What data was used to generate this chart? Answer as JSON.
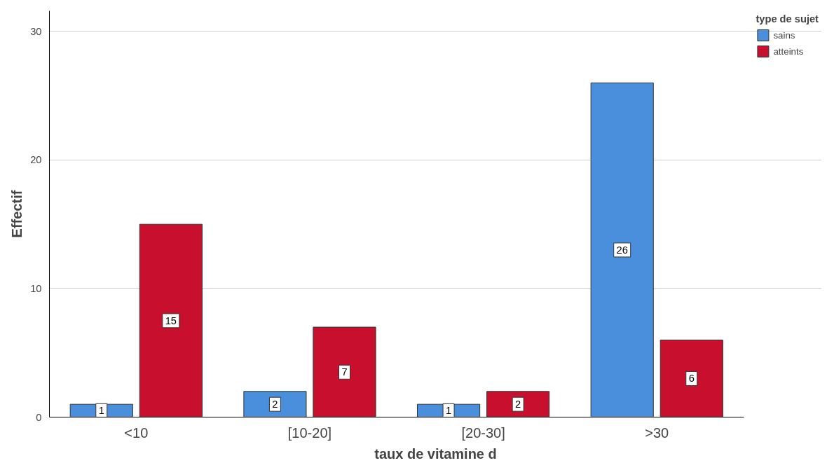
{
  "chart_data": {
    "type": "bar",
    "xlabel": "taux de vitamine d",
    "ylabel": "Effectif",
    "legend_title": "type de sujet",
    "categories": [
      "<10",
      "[10-20]",
      "[20-30]",
      ">30"
    ],
    "series": [
      {
        "name": "sains",
        "color": "#4a8fdc",
        "values": [
          1,
          2,
          1,
          26
        ]
      },
      {
        "name": "atteints",
        "color": "#c8102e",
        "values": [
          15,
          7,
          2,
          6
        ]
      }
    ],
    "ylim": [
      0,
      31.6
    ],
    "yticks": [
      0,
      10,
      20,
      30
    ],
    "grid": "y",
    "legend": "top right",
    "data_labels": true
  }
}
